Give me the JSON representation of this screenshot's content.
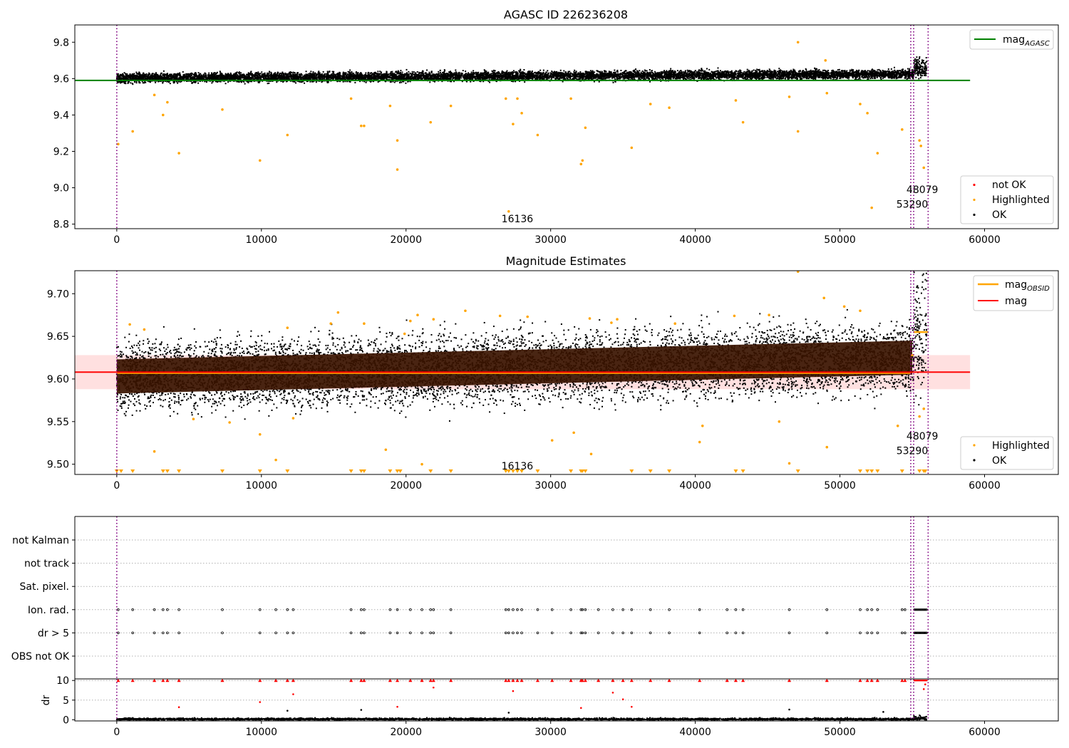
{
  "chart_data": [
    {
      "type": "scatter",
      "title": "AGASC ID 226236208",
      "xlim": [
        -2900,
        65100
      ],
      "ylim": [
        8.775,
        9.895
      ],
      "xticks": [
        "0",
        "10000",
        "20000",
        "30000",
        "40000",
        "50000",
        "60000"
      ],
      "yticks": [
        "8.8",
        "9.0",
        "9.2",
        "9.4",
        "9.6",
        "9.8"
      ],
      "grid": false,
      "legend_top": {
        "placement": "top-right",
        "entries": [
          {
            "label": "mag",
            "sub": "AGASC",
            "color": "#008000",
            "kind": "line"
          }
        ]
      },
      "legend_bottom": {
        "placement": "bottom-right",
        "entries": [
          {
            "label": "not OK",
            "color": "#ff0000",
            "kind": "point"
          },
          {
            "label": "Highlighted",
            "color": "#ffa500",
            "kind": "point"
          },
          {
            "label": "OK",
            "color": "#000000",
            "kind": "point"
          }
        ]
      },
      "band": {
        "ok_center": 9.603,
        "ok_halfwidth": 0.028,
        "slope_per_10000": 0.004,
        "x_end": 56000
      },
      "reference_line": {
        "name": "mag_AGASC",
        "y": 9.59,
        "x_range": [
          -2900,
          59000
        ],
        "color": "#008000"
      },
      "vlines": [
        0,
        54900,
        55100,
        56100
      ],
      "highlighted_points": [
        [
          100,
          9.24
        ],
        [
          1100,
          9.31
        ],
        [
          2600,
          9.51
        ],
        [
          3200,
          9.4
        ],
        [
          3500,
          9.47
        ],
        [
          4300,
          9.19
        ],
        [
          7300,
          9.43
        ],
        [
          9900,
          9.15
        ],
        [
          11800,
          9.29
        ],
        [
          16200,
          9.49
        ],
        [
          16900,
          9.34
        ],
        [
          17100,
          9.34
        ],
        [
          18900,
          9.45
        ],
        [
          19400,
          9.1
        ],
        [
          19400,
          9.26
        ],
        [
          21700,
          9.36
        ],
        [
          23100,
          9.45
        ],
        [
          26900,
          9.49
        ],
        [
          27100,
          8.87
        ],
        [
          27400,
          9.35
        ],
        [
          27700,
          9.49
        ],
        [
          28000,
          9.41
        ],
        [
          29100,
          9.29
        ],
        [
          31400,
          9.49
        ],
        [
          32100,
          9.13
        ],
        [
          32200,
          9.15
        ],
        [
          32400,
          9.33
        ],
        [
          35600,
          9.22
        ],
        [
          36900,
          9.46
        ],
        [
          38200,
          9.44
        ],
        [
          42800,
          9.48
        ],
        [
          43300,
          9.36
        ],
        [
          46500,
          9.5
        ],
        [
          47100,
          9.31
        ],
        [
          47100,
          9.8
        ],
        [
          49000,
          9.7
        ],
        [
          49100,
          9.52
        ],
        [
          51400,
          9.46
        ],
        [
          51900,
          9.41
        ],
        [
          52200,
          8.89
        ],
        [
          52600,
          9.19
        ],
        [
          54300,
          9.32
        ],
        [
          55800,
          9.11
        ],
        [
          55500,
          9.26
        ],
        [
          55600,
          9.23
        ]
      ],
      "annotations": [
        {
          "text": "16136",
          "x": 26600,
          "y": 8.81
        },
        {
          "text": "48079",
          "x": 54600,
          "y": 8.97
        },
        {
          "text": "53290",
          "x": 53900,
          "y": 8.89
        }
      ]
    },
    {
      "type": "scatter",
      "title": "Magnitude Estimates",
      "xlim": [
        -2900,
        65100
      ],
      "ylim": [
        9.488,
        9.727
      ],
      "xticks": [
        "0",
        "10000",
        "20000",
        "30000",
        "40000",
        "50000",
        "60000"
      ],
      "yticks": [
        "9.50",
        "9.55",
        "9.60",
        "9.65",
        "9.70"
      ],
      "grid": false,
      "legend_top": {
        "placement": "top-right",
        "entries": [
          {
            "label": "mag",
            "sub": "OBSID",
            "color": "#ffa500",
            "kind": "line"
          },
          {
            "label": "mag",
            "sub": "",
            "color": "#ff0000",
            "kind": "line"
          }
        ]
      },
      "legend_bottom": {
        "placement": "bottom-right",
        "entries": [
          {
            "label": "Highlighted",
            "color": "#ffa500",
            "kind": "point"
          },
          {
            "label": "OK",
            "color": "#000000",
            "kind": "point"
          }
        ]
      },
      "band": {
        "ok_center": 9.603,
        "ok_halfwidth": 0.043,
        "core_halfwidth": 0.02,
        "slope_per_10000": 0.004,
        "x_end": 56000
      },
      "mag_line": {
        "y": 9.608,
        "x_range": [
          -2900,
          59000
        ],
        "band": [
          9.588,
          9.628
        ],
        "color": "#ff0000"
      },
      "obsid_segments": [
        {
          "x": [
            0,
            54900
          ],
          "y": 9.607
        },
        {
          "x": [
            54900,
            55100
          ],
          "y": 9.628
        },
        {
          "x": [
            55100,
            56100
          ],
          "y": 9.655
        }
      ],
      "vlines": [
        0,
        54900,
        55100,
        56100
      ],
      "highlighted_points": [
        [
          900,
          9.664
        ],
        [
          1900,
          9.658
        ],
        [
          2600,
          9.515
        ],
        [
          5300,
          9.553
        ],
        [
          7800,
          9.549
        ],
        [
          9900,
          9.535
        ],
        [
          11000,
          9.505
        ],
        [
          11800,
          9.66
        ],
        [
          12200,
          9.554
        ],
        [
          14800,
          9.665
        ],
        [
          15300,
          9.678
        ],
        [
          17100,
          9.665
        ],
        [
          18600,
          9.517
        ],
        [
          19900,
          9.653
        ],
        [
          20300,
          9.668
        ],
        [
          20800,
          9.675
        ],
        [
          21100,
          9.5
        ],
        [
          21900,
          9.67
        ],
        [
          24100,
          9.68
        ],
        [
          26500,
          9.674
        ],
        [
          28400,
          9.673
        ],
        [
          30100,
          9.528
        ],
        [
          31600,
          9.537
        ],
        [
          32700,
          9.671
        ],
        [
          32800,
          9.512
        ],
        [
          34200,
          9.666
        ],
        [
          34600,
          9.67
        ],
        [
          38600,
          9.665
        ],
        [
          40300,
          9.526
        ],
        [
          40500,
          9.545
        ],
        [
          42700,
          9.674
        ],
        [
          45100,
          9.675
        ],
        [
          45800,
          9.55
        ],
        [
          46500,
          9.501
        ],
        [
          47100,
          9.726
        ],
        [
          48900,
          9.695
        ],
        [
          49100,
          9.52
        ],
        [
          50300,
          9.685
        ],
        [
          51400,
          9.68
        ],
        [
          54000,
          9.545
        ],
        [
          55800,
          9.565
        ],
        [
          55500,
          9.556
        ]
      ],
      "lower_limit_x": [
        0,
        300,
        1100,
        3200,
        3500,
        4300,
        7300,
        9900,
        11800,
        16200,
        16900,
        17100,
        18900,
        19400,
        19600,
        21700,
        23100,
        26900,
        27100,
        27400,
        27700,
        28000,
        29100,
        31400,
        32100,
        32200,
        32400,
        35600,
        36900,
        38200,
        42800,
        43300,
        47100,
        51400,
        51900,
        52200,
        52600,
        54300,
        55500,
        55800,
        55900
      ],
      "annotations": [
        {
          "text": "16136",
          "x": 26600,
          "y": 9.494
        },
        {
          "text": "48079",
          "x": 54600,
          "y": 9.529
        },
        {
          "text": "53290",
          "x": 53900,
          "y": 9.512
        }
      ]
    },
    {
      "type": "scatter",
      "title": "",
      "xlim": [
        -2900,
        65100
      ],
      "flag_rows": [
        "not Kalman",
        "not track",
        "Sat. pixel.",
        "Ion. rad.",
        "dr > 5",
        "OBS not OK"
      ],
      "flagged_x": [
        100,
        1100,
        2600,
        3200,
        3500,
        4300,
        7300,
        9900,
        11000,
        11800,
        12200,
        16200,
        16900,
        17100,
        18900,
        19400,
        20300,
        21100,
        21700,
        21900,
        23100,
        26900,
        27100,
        27400,
        27700,
        28000,
        29100,
        30100,
        31400,
        32100,
        32200,
        32400,
        33300,
        34300,
        35000,
        35600,
        36900,
        38200,
        40300,
        42200,
        42800,
        43300,
        46500,
        49100,
        51400,
        51900,
        52200,
        52600,
        54300,
        54500
      ],
      "ylabel": "dr",
      "dr_ylim": [
        -0.3,
        10.4
      ],
      "dr_yticks": [
        "0",
        "5",
        "10"
      ],
      "dr_red_points": [
        [
          4300,
          3.2
        ],
        [
          9900,
          4.5
        ],
        [
          12200,
          6.5
        ],
        [
          19400,
          3.3
        ],
        [
          21900,
          8.2
        ],
        [
          27400,
          7.3
        ],
        [
          32100,
          3.0
        ],
        [
          34300,
          6.9
        ],
        [
          35000,
          5.2
        ],
        [
          35600,
          3.3
        ],
        [
          55800,
          7.8
        ],
        [
          55900,
          9.0
        ]
      ],
      "dr_black_points": [
        [
          11800,
          2.3
        ],
        [
          16900,
          2.5
        ],
        [
          27100,
          1.8
        ],
        [
          46500,
          2.6
        ],
        [
          53000,
          2.0
        ]
      ],
      "vlines": [
        0,
        54900,
        55100,
        56100
      ],
      "xticks": [
        "0",
        "10000",
        "20000",
        "30000",
        "40000",
        "50000",
        "60000"
      ]
    }
  ]
}
